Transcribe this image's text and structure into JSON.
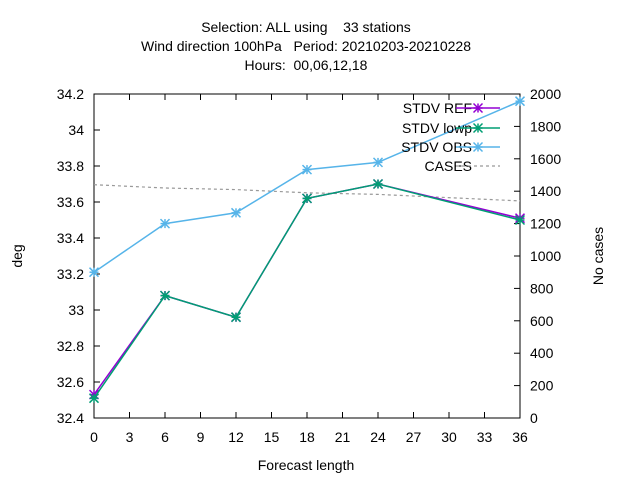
{
  "chart_data": {
    "type": "line",
    "title_lines": [
      "Selection: ALL using    33 stations",
      "Wind direction 100hPa   Period: 20210203-20210228",
      "Hours:  00,06,12,18"
    ],
    "xlabel": "Forecast length",
    "ylabel": "deg",
    "y2label": "No cases",
    "xlim": [
      0,
      36
    ],
    "ylim": [
      32.4,
      34.2
    ],
    "y2lim": [
      0,
      2000
    ],
    "x_ticks": [
      "0",
      "3",
      "6",
      "9",
      "12",
      "15",
      "18",
      "21",
      "24",
      "27",
      "30",
      "33",
      "36"
    ],
    "y_ticks": [
      "32.4",
      "32.6",
      "32.8",
      "33",
      "33.2",
      "33.4",
      "33.6",
      "33.8",
      "34",
      "34.2"
    ],
    "y2_ticks": [
      "0",
      "200",
      "400",
      "600",
      "800",
      "1000",
      "1200",
      "1400",
      "1600",
      "1800",
      "2000"
    ],
    "legend_position": "top-right",
    "grid": false,
    "series": [
      {
        "name": "STDV REF",
        "axis": "y",
        "color": "#9400d3",
        "marker": "star",
        "style": "solid",
        "x": [
          0,
          6,
          12,
          18,
          24,
          36
        ],
        "y": [
          32.53,
          33.08,
          32.96,
          33.62,
          33.7,
          33.51
        ]
      },
      {
        "name": "STDV lowp",
        "axis": "y",
        "color": "#009e73",
        "marker": "star",
        "style": "solid",
        "x": [
          0,
          6,
          12,
          18,
          24,
          36
        ],
        "y": [
          32.51,
          33.08,
          32.96,
          33.62,
          33.7,
          33.5
        ]
      },
      {
        "name": "STDV OBS",
        "axis": "y",
        "color": "#56b4e9",
        "marker": "star",
        "style": "solid",
        "x": [
          0,
          6,
          12,
          18,
          24,
          36
        ],
        "y": [
          33.21,
          33.48,
          33.54,
          33.78,
          33.82,
          34.16
        ]
      },
      {
        "name": "CASES",
        "axis": "y2",
        "color": "#999999",
        "marker": "none",
        "style": "dashed",
        "x": [
          0,
          6,
          12,
          18,
          24,
          36
        ],
        "y": [
          1440,
          1420,
          1410,
          1390,
          1380,
          1340
        ]
      }
    ]
  }
}
